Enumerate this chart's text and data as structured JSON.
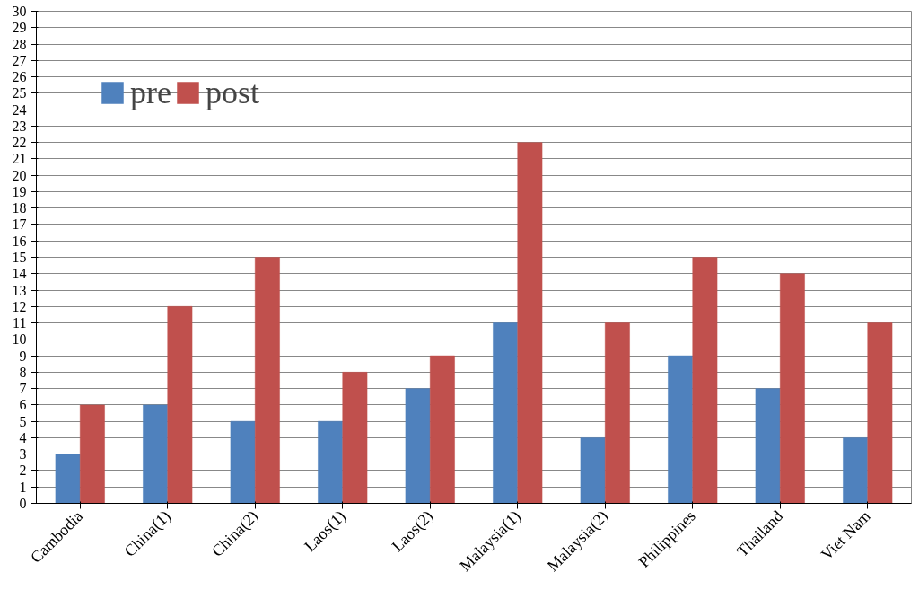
{
  "chart_data": {
    "type": "bar",
    "categories": [
      "Cambodia",
      "China(1)",
      "China(2)",
      "Laos(1)",
      "Laos(2)",
      "Malaysia(1)",
      "Malaysia(2)",
      "Philippines",
      "Thailand",
      "Viet Nam"
    ],
    "series": [
      {
        "name": "pre",
        "color": "#4f81bd",
        "values": [
          3,
          6,
          5,
          5,
          7,
          11,
          4,
          9,
          7,
          4
        ]
      },
      {
        "name": "post",
        "color": "#c0504d",
        "values": [
          6,
          12,
          15,
          8,
          9,
          22,
          11,
          15,
          14,
          11
        ]
      }
    ],
    "ylim": [
      0,
      30
    ],
    "yticks": [
      0,
      1,
      2,
      3,
      4,
      5,
      6,
      7,
      8,
      9,
      10,
      11,
      12,
      13,
      14,
      15,
      16,
      17,
      18,
      19,
      20,
      21,
      22,
      23,
      24,
      25,
      26,
      27,
      28,
      29,
      30
    ],
    "grid": "y",
    "legend": "top left"
  }
}
